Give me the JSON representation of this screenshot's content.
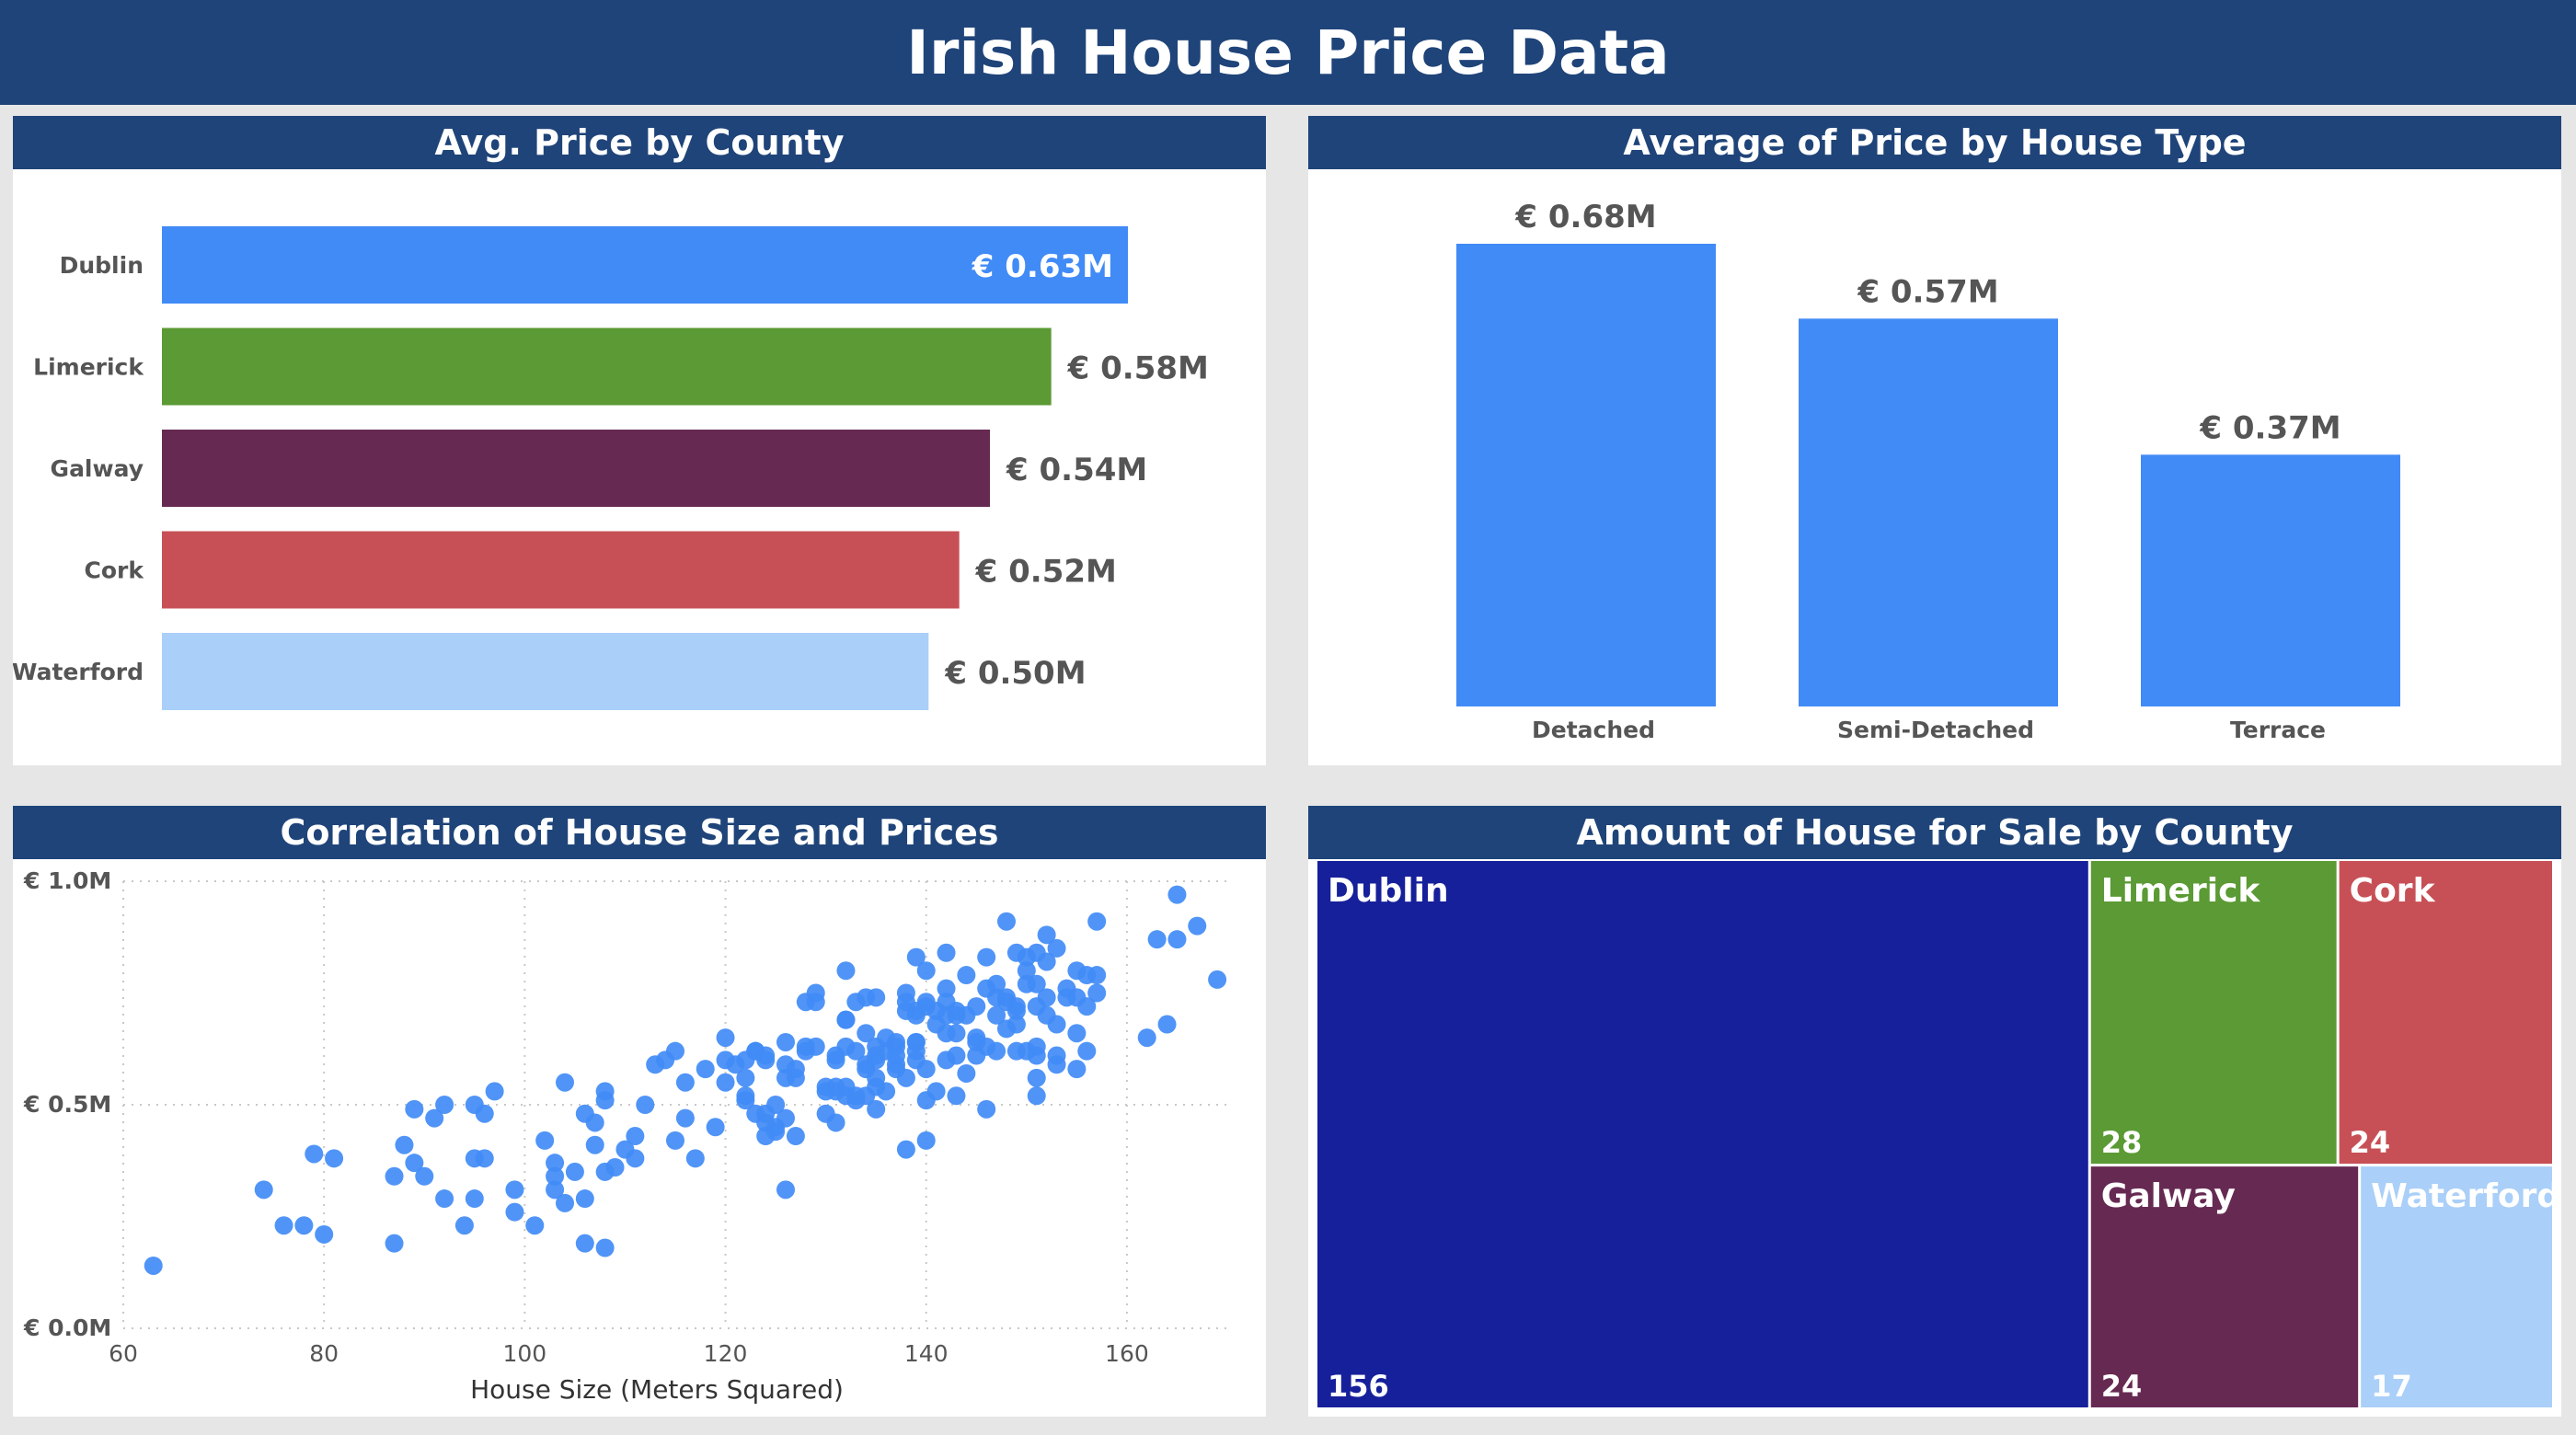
{
  "header": {
    "title": "Irish House Price Data"
  },
  "panels": {
    "county": "Avg. Price by County",
    "house_type": "Average of Price by House Type",
    "scatter": "Correlation of House Size and Prices",
    "treemap": "Amount of House for Sale by County"
  },
  "chart_data": [
    {
      "id": "avg-price-by-county",
      "type": "bar",
      "orientation": "horizontal",
      "title": "Avg. Price by County",
      "categories": [
        "Dublin",
        "Limerick",
        "Galway",
        "Cork",
        "Waterford"
      ],
      "values": [
        0.63,
        0.58,
        0.54,
        0.52,
        0.5
      ],
      "labels": [
        "€ 0.63M",
        "€ 0.58M",
        "€ 0.54M",
        "€ 0.52M",
        "€ 0.50M"
      ],
      "colors": [
        "#418bf6",
        "#5b9a34",
        "#662a52",
        "#c75056",
        "#aacff8"
      ],
      "unit": "€ M",
      "xlim": [
        0,
        0.72
      ]
    },
    {
      "id": "avg-price-by-house-type",
      "type": "bar",
      "title": "Average of Price by House Type",
      "categories": [
        "Detached",
        "Semi-Detached",
        "Terrace"
      ],
      "values": [
        0.68,
        0.57,
        0.37
      ],
      "labels": [
        "€ 0.68M",
        "€ 0.57M",
        "€ 0.37M"
      ],
      "color": "#418bf6",
      "ylim": [
        0,
        0.72
      ]
    },
    {
      "id": "size-vs-price",
      "type": "scatter",
      "title": "Correlation of House Size and Prices",
      "xlabel": "House Size (Meters Squared)",
      "ylabel": "",
      "xlim": [
        60,
        170
      ],
      "ylim": [
        0,
        1.0
      ],
      "xticks": [
        60,
        80,
        100,
        120,
        140,
        160
      ],
      "yticks": [
        0,
        0.5,
        1.0
      ],
      "yticklabels": [
        "€ 0.0M",
        "€ 0.5M",
        "€ 1.0M"
      ],
      "color": "#418bf6",
      "grid": true,
      "points": [
        [
          63,
          0.14
        ],
        [
          74,
          0.31
        ],
        [
          76,
          0.23
        ],
        [
          78,
          0.23
        ],
        [
          79,
          0.39
        ],
        [
          80,
          0.21
        ],
        [
          81,
          0.38
        ],
        [
          87,
          0.19
        ],
        [
          87,
          0.34
        ],
        [
          88,
          0.41
        ],
        [
          89,
          0.49
        ],
        [
          89,
          0.37
        ],
        [
          90,
          0.34
        ],
        [
          91,
          0.47
        ],
        [
          92,
          0.5
        ],
        [
          92,
          0.29
        ],
        [
          94,
          0.23
        ],
        [
          95,
          0.5
        ],
        [
          95,
          0.38
        ],
        [
          95,
          0.29
        ],
        [
          96,
          0.38
        ],
        [
          96,
          0.48
        ],
        [
          97,
          0.53
        ],
        [
          99,
          0.31
        ],
        [
          99,
          0.26
        ],
        [
          101,
          0.23
        ],
        [
          102,
          0.42
        ],
        [
          103,
          0.31
        ],
        [
          103,
          0.37
        ],
        [
          103,
          0.34
        ],
        [
          104,
          0.28
        ],
        [
          104,
          0.55
        ],
        [
          105,
          0.35
        ],
        [
          106,
          0.48
        ],
        [
          106,
          0.29
        ],
        [
          106,
          0.19
        ],
        [
          107,
          0.41
        ],
        [
          107,
          0.46
        ],
        [
          108,
          0.51
        ],
        [
          108,
          0.53
        ],
        [
          108,
          0.35
        ],
        [
          108,
          0.18
        ],
        [
          109,
          0.36
        ],
        [
          110,
          0.4
        ],
        [
          111,
          0.43
        ],
        [
          111,
          0.38
        ],
        [
          112,
          0.5
        ],
        [
          113,
          0.59
        ],
        [
          114,
          0.6
        ],
        [
          115,
          0.62
        ],
        [
          115,
          0.42
        ],
        [
          116,
          0.47
        ],
        [
          116,
          0.55
        ],
        [
          117,
          0.38
        ],
        [
          118,
          0.58
        ],
        [
          119,
          0.45
        ],
        [
          120,
          0.55
        ],
        [
          120,
          0.6
        ],
        [
          120,
          0.65
        ],
        [
          121,
          0.59
        ],
        [
          122,
          0.6
        ],
        [
          122,
          0.56
        ],
        [
          122,
          0.51
        ],
        [
          122,
          0.52
        ],
        [
          123,
          0.62
        ],
        [
          123,
          0.62
        ],
        [
          123,
          0.48
        ],
        [
          124,
          0.61
        ],
        [
          124,
          0.48
        ],
        [
          124,
          0.6
        ],
        [
          124,
          0.46
        ],
        [
          124,
          0.43
        ],
        [
          125,
          0.45
        ],
        [
          125,
          0.5
        ],
        [
          125,
          0.44
        ],
        [
          126,
          0.64
        ],
        [
          126,
          0.59
        ],
        [
          126,
          0.56
        ],
        [
          126,
          0.47
        ],
        [
          126,
          0.31
        ],
        [
          127,
          0.58
        ],
        [
          127,
          0.56
        ],
        [
          127,
          0.43
        ],
        [
          128,
          0.62
        ],
        [
          128,
          0.73
        ],
        [
          128,
          0.63
        ],
        [
          129,
          0.75
        ],
        [
          129,
          0.73
        ],
        [
          129,
          0.63
        ],
        [
          130,
          0.54
        ],
        [
          130,
          0.53
        ],
        [
          130,
          0.48
        ],
        [
          131,
          0.54
        ],
        [
          131,
          0.53
        ],
        [
          131,
          0.46
        ],
        [
          131,
          0.61
        ],
        [
          131,
          0.6
        ],
        [
          132,
          0.69
        ],
        [
          132,
          0.8
        ],
        [
          132,
          0.69
        ],
        [
          132,
          0.63
        ],
        [
          132,
          0.54
        ],
        [
          132,
          0.52
        ],
        [
          133,
          0.51
        ],
        [
          133,
          0.73
        ],
        [
          133,
          0.62
        ],
        [
          133,
          0.52
        ],
        [
          134,
          0.58
        ],
        [
          134,
          0.59
        ],
        [
          134,
          0.66
        ],
        [
          134,
          0.52
        ],
        [
          134,
          0.74
        ],
        [
          135,
          0.49
        ],
        [
          135,
          0.54
        ],
        [
          135,
          0.6
        ],
        [
          135,
          0.63
        ],
        [
          135,
          0.61
        ],
        [
          135,
          0.56
        ],
        [
          135,
          0.74
        ],
        [
          136,
          0.65
        ],
        [
          136,
          0.62
        ],
        [
          136,
          0.53
        ],
        [
          137,
          0.59
        ],
        [
          137,
          0.61
        ],
        [
          137,
          0.58
        ],
        [
          137,
          0.64
        ],
        [
          137,
          0.63
        ],
        [
          138,
          0.71
        ],
        [
          138,
          0.73
        ],
        [
          138,
          0.56
        ],
        [
          138,
          0.4
        ],
        [
          138,
          0.75
        ],
        [
          139,
          0.6
        ],
        [
          139,
          0.62
        ],
        [
          139,
          0.7
        ],
        [
          139,
          0.83
        ],
        [
          139,
          0.71
        ],
        [
          139,
          0.64
        ],
        [
          139,
          0.64
        ],
        [
          140,
          0.58
        ],
        [
          140,
          0.73
        ],
        [
          140,
          0.8
        ],
        [
          140,
          0.51
        ],
        [
          140,
          0.42
        ],
        [
          140,
          0.72
        ],
        [
          141,
          0.68
        ],
        [
          141,
          0.71
        ],
        [
          141,
          0.53
        ],
        [
          142,
          0.6
        ],
        [
          142,
          0.66
        ],
        [
          142,
          0.7
        ],
        [
          142,
          0.73
        ],
        [
          142,
          0.84
        ],
        [
          142,
          0.76
        ],
        [
          143,
          0.61
        ],
        [
          143,
          0.7
        ],
        [
          143,
          0.52
        ],
        [
          143,
          0.66
        ],
        [
          143,
          0.71
        ],
        [
          144,
          0.79
        ],
        [
          144,
          0.57
        ],
        [
          144,
          0.7
        ],
        [
          145,
          0.72
        ],
        [
          145,
          0.65
        ],
        [
          145,
          0.61
        ],
        [
          145,
          0.64
        ],
        [
          146,
          0.76
        ],
        [
          146,
          0.83
        ],
        [
          146,
          0.63
        ],
        [
          146,
          0.49
        ],
        [
          147,
          0.7
        ],
        [
          147,
          0.74
        ],
        [
          147,
          0.77
        ],
        [
          147,
          0.62
        ],
        [
          148,
          0.74
        ],
        [
          148,
          0.67
        ],
        [
          148,
          0.91
        ],
        [
          148,
          0.73
        ],
        [
          149,
          0.84
        ],
        [
          149,
          0.72
        ],
        [
          149,
          0.68
        ],
        [
          149,
          0.71
        ],
        [
          149,
          0.62
        ],
        [
          150,
          0.77
        ],
        [
          150,
          0.83
        ],
        [
          150,
          0.62
        ],
        [
          150,
          0.8
        ],
        [
          151,
          0.84
        ],
        [
          151,
          0.61
        ],
        [
          151,
          0.77
        ],
        [
          151,
          0.52
        ],
        [
          151,
          0.56
        ],
        [
          151,
          0.72
        ],
        [
          151,
          0.63
        ],
        [
          152,
          0.88
        ],
        [
          152,
          0.82
        ],
        [
          152,
          0.7
        ],
        [
          152,
          0.74
        ],
        [
          153,
          0.68
        ],
        [
          153,
          0.61
        ],
        [
          153,
          0.59
        ],
        [
          153,
          0.85
        ],
        [
          154,
          0.76
        ],
        [
          154,
          0.74
        ],
        [
          155,
          0.58
        ],
        [
          155,
          0.66
        ],
        [
          155,
          0.8
        ],
        [
          155,
          0.74
        ],
        [
          156,
          0.72
        ],
        [
          156,
          0.79
        ],
        [
          156,
          0.62
        ],
        [
          157,
          0.75
        ],
        [
          157,
          0.91
        ],
        [
          157,
          0.79
        ],
        [
          162,
          0.65
        ],
        [
          163,
          0.87
        ],
        [
          164,
          0.68
        ],
        [
          165,
          0.97
        ],
        [
          165,
          0.87
        ],
        [
          167,
          0.9
        ],
        [
          169,
          0.78
        ]
      ]
    },
    {
      "id": "houses-for-sale-by-county",
      "type": "treemap",
      "title": "Amount of House for Sale by County",
      "categories": [
        "Dublin",
        "Limerick",
        "Cork",
        "Galway",
        "Waterford"
      ],
      "values": [
        156,
        28,
        24,
        24,
        17
      ],
      "colors": [
        "#16209a",
        "#5b9a34",
        "#c75056",
        "#662a52",
        "#aacff8"
      ]
    }
  ]
}
